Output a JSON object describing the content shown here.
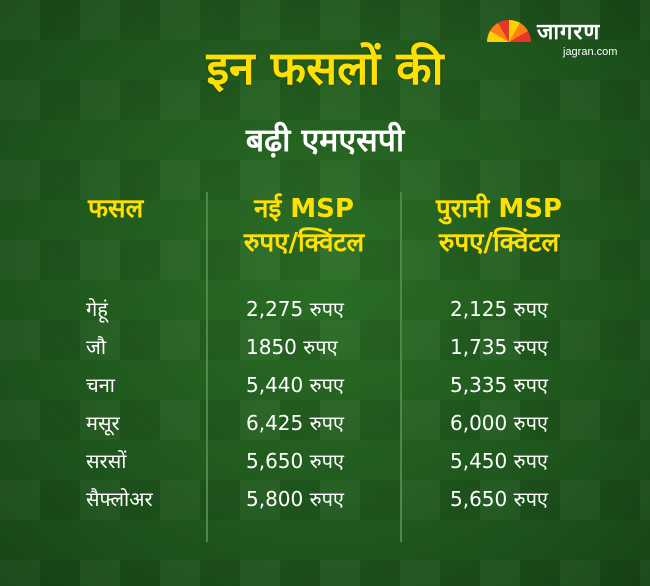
{
  "logo": {
    "brand": "जागरण",
    "url": "jagran.com"
  },
  "title": "इन फसलों की",
  "subtitle": "बढ़ी एमएसपी",
  "headers": {
    "crop": "फसल",
    "new_msp_line1": "नई MSP",
    "new_msp_line2": "रुपए/क्विंटल",
    "old_msp_line1": "पुरानी MSP",
    "old_msp_line2": "रुपए/क्विंटल"
  },
  "rows": [
    {
      "crop": "गेहूं",
      "new": "2,275 रुपए",
      "old": "2,125 रुपए"
    },
    {
      "crop": "जौ",
      "new": "1850 रुपए",
      "old": "1,735 रुपए"
    },
    {
      "crop": "चना",
      "new": "5,440 रुपए",
      "old": "5,335 रुपए"
    },
    {
      "crop": "मसूर",
      "new": "6,425 रुपए",
      "old": "6,000 रुपए"
    },
    {
      "crop": "सरसों",
      "new": "5,650 रुपए",
      "old": "5,450 रुपए"
    },
    {
      "crop": "सैफ्लोअर",
      "new": "5,800 रुपए",
      "old": "5,650 रुपए"
    }
  ],
  "colors": {
    "background": "#1f5a1f",
    "accent": "#ffe000",
    "text": "#ffffff"
  }
}
